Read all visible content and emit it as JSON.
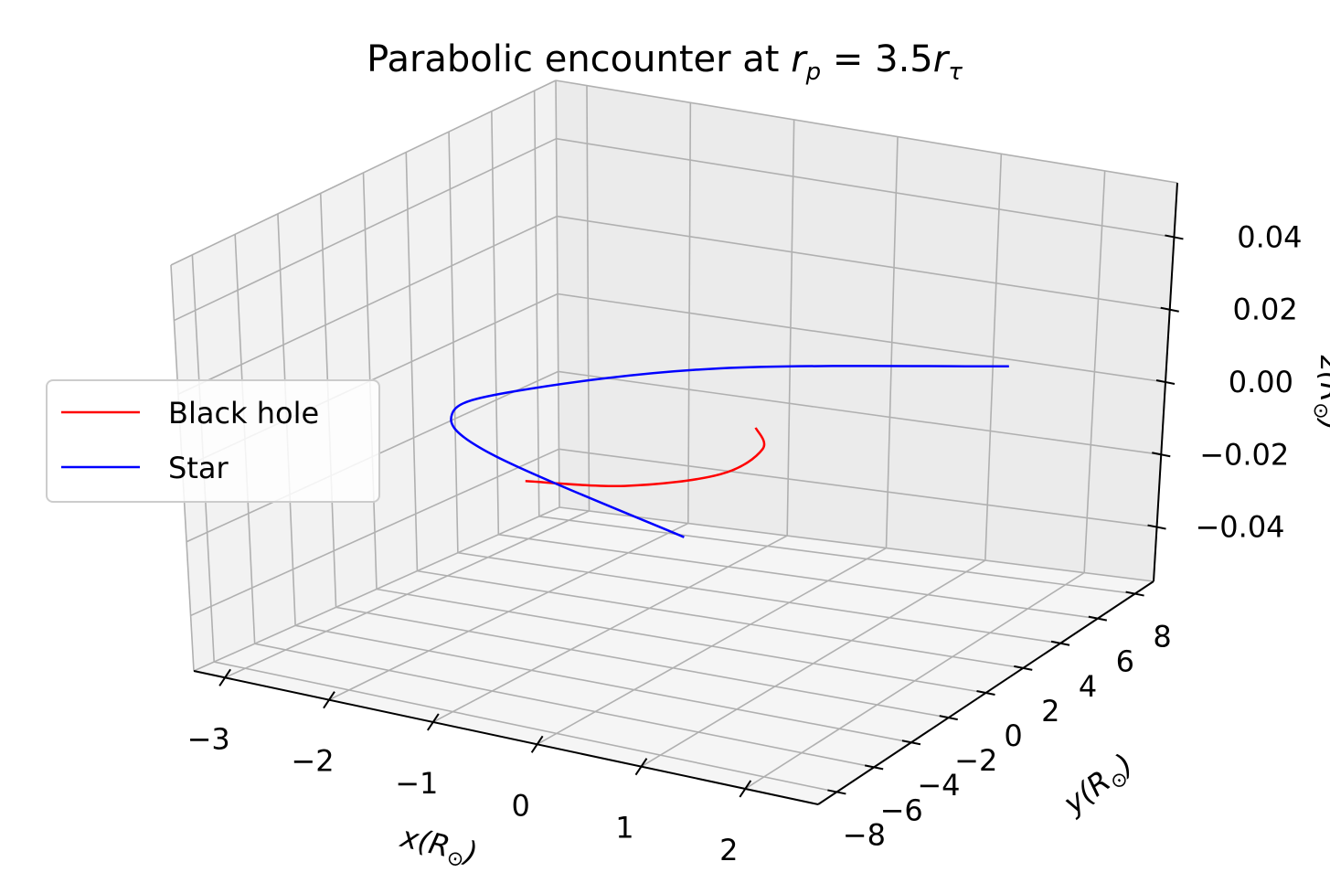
{
  "chart_data": {
    "type": "line",
    "projection": "3d",
    "title_prefix": "Parabolic encounter at ",
    "title_math": {
      "r": "r",
      "p_sub": "p",
      "equals": " = 3.5",
      "tau_sub": "τ"
    },
    "axes": {
      "x": {
        "label_main": "x(R",
        "label_sub": "⊙",
        "label_close": ")",
        "ticks": [
          -3,
          -2,
          -1,
          0,
          1,
          2
        ],
        "tick_labels": [
          "−3",
          "−2",
          "−1",
          "0",
          "1",
          "2"
        ],
        "lim": [
          -3.3,
          2.7
        ]
      },
      "y": {
        "label_main": "y(R",
        "label_sub": "⊙",
        "label_close": ")",
        "ticks": [
          -8,
          -6,
          -4,
          -2,
          0,
          2,
          4,
          6,
          8
        ],
        "tick_labels": [
          "−8",
          "−6",
          "−4",
          "−2",
          "0",
          "2",
          "4",
          "6",
          "8"
        ],
        "lim": [
          -9,
          9
        ]
      },
      "z": {
        "label_main": "z(R",
        "label_sub": "⊙",
        "label_close": ")",
        "ticks": [
          -0.04,
          -0.02,
          0.0,
          0.02,
          0.04
        ],
        "tick_labels": [
          "−0.04",
          "−0.02",
          "0.00",
          "0.02",
          "0.04"
        ],
        "lim": [
          -0.055,
          0.055
        ]
      }
    },
    "grid": true,
    "legend_position": "center-left",
    "series": [
      {
        "name": "Black hole",
        "color": "#ff0000",
        "points": [
          [
            -0.63,
            -5.89,
            0
          ],
          [
            0.17,
            -5.09,
            0
          ],
          [
            0.7,
            -3.08,
            0
          ],
          [
            0.64,
            -0.67,
            0
          ],
          [
            0.27,
            0.88,
            0
          ]
        ]
      },
      {
        "name": "Star",
        "color": "#0000ff",
        "points": [
          [
            1.26,
            8.47,
            0
          ],
          [
            -0.9,
            5.04,
            0
          ],
          [
            -2.07,
            0.92,
            0
          ],
          [
            -2.19,
            -1.56,
            0
          ],
          [
            -1.28,
            -4.23,
            0
          ],
          [
            1.35,
            -8.28,
            0
          ]
        ]
      }
    ]
  }
}
